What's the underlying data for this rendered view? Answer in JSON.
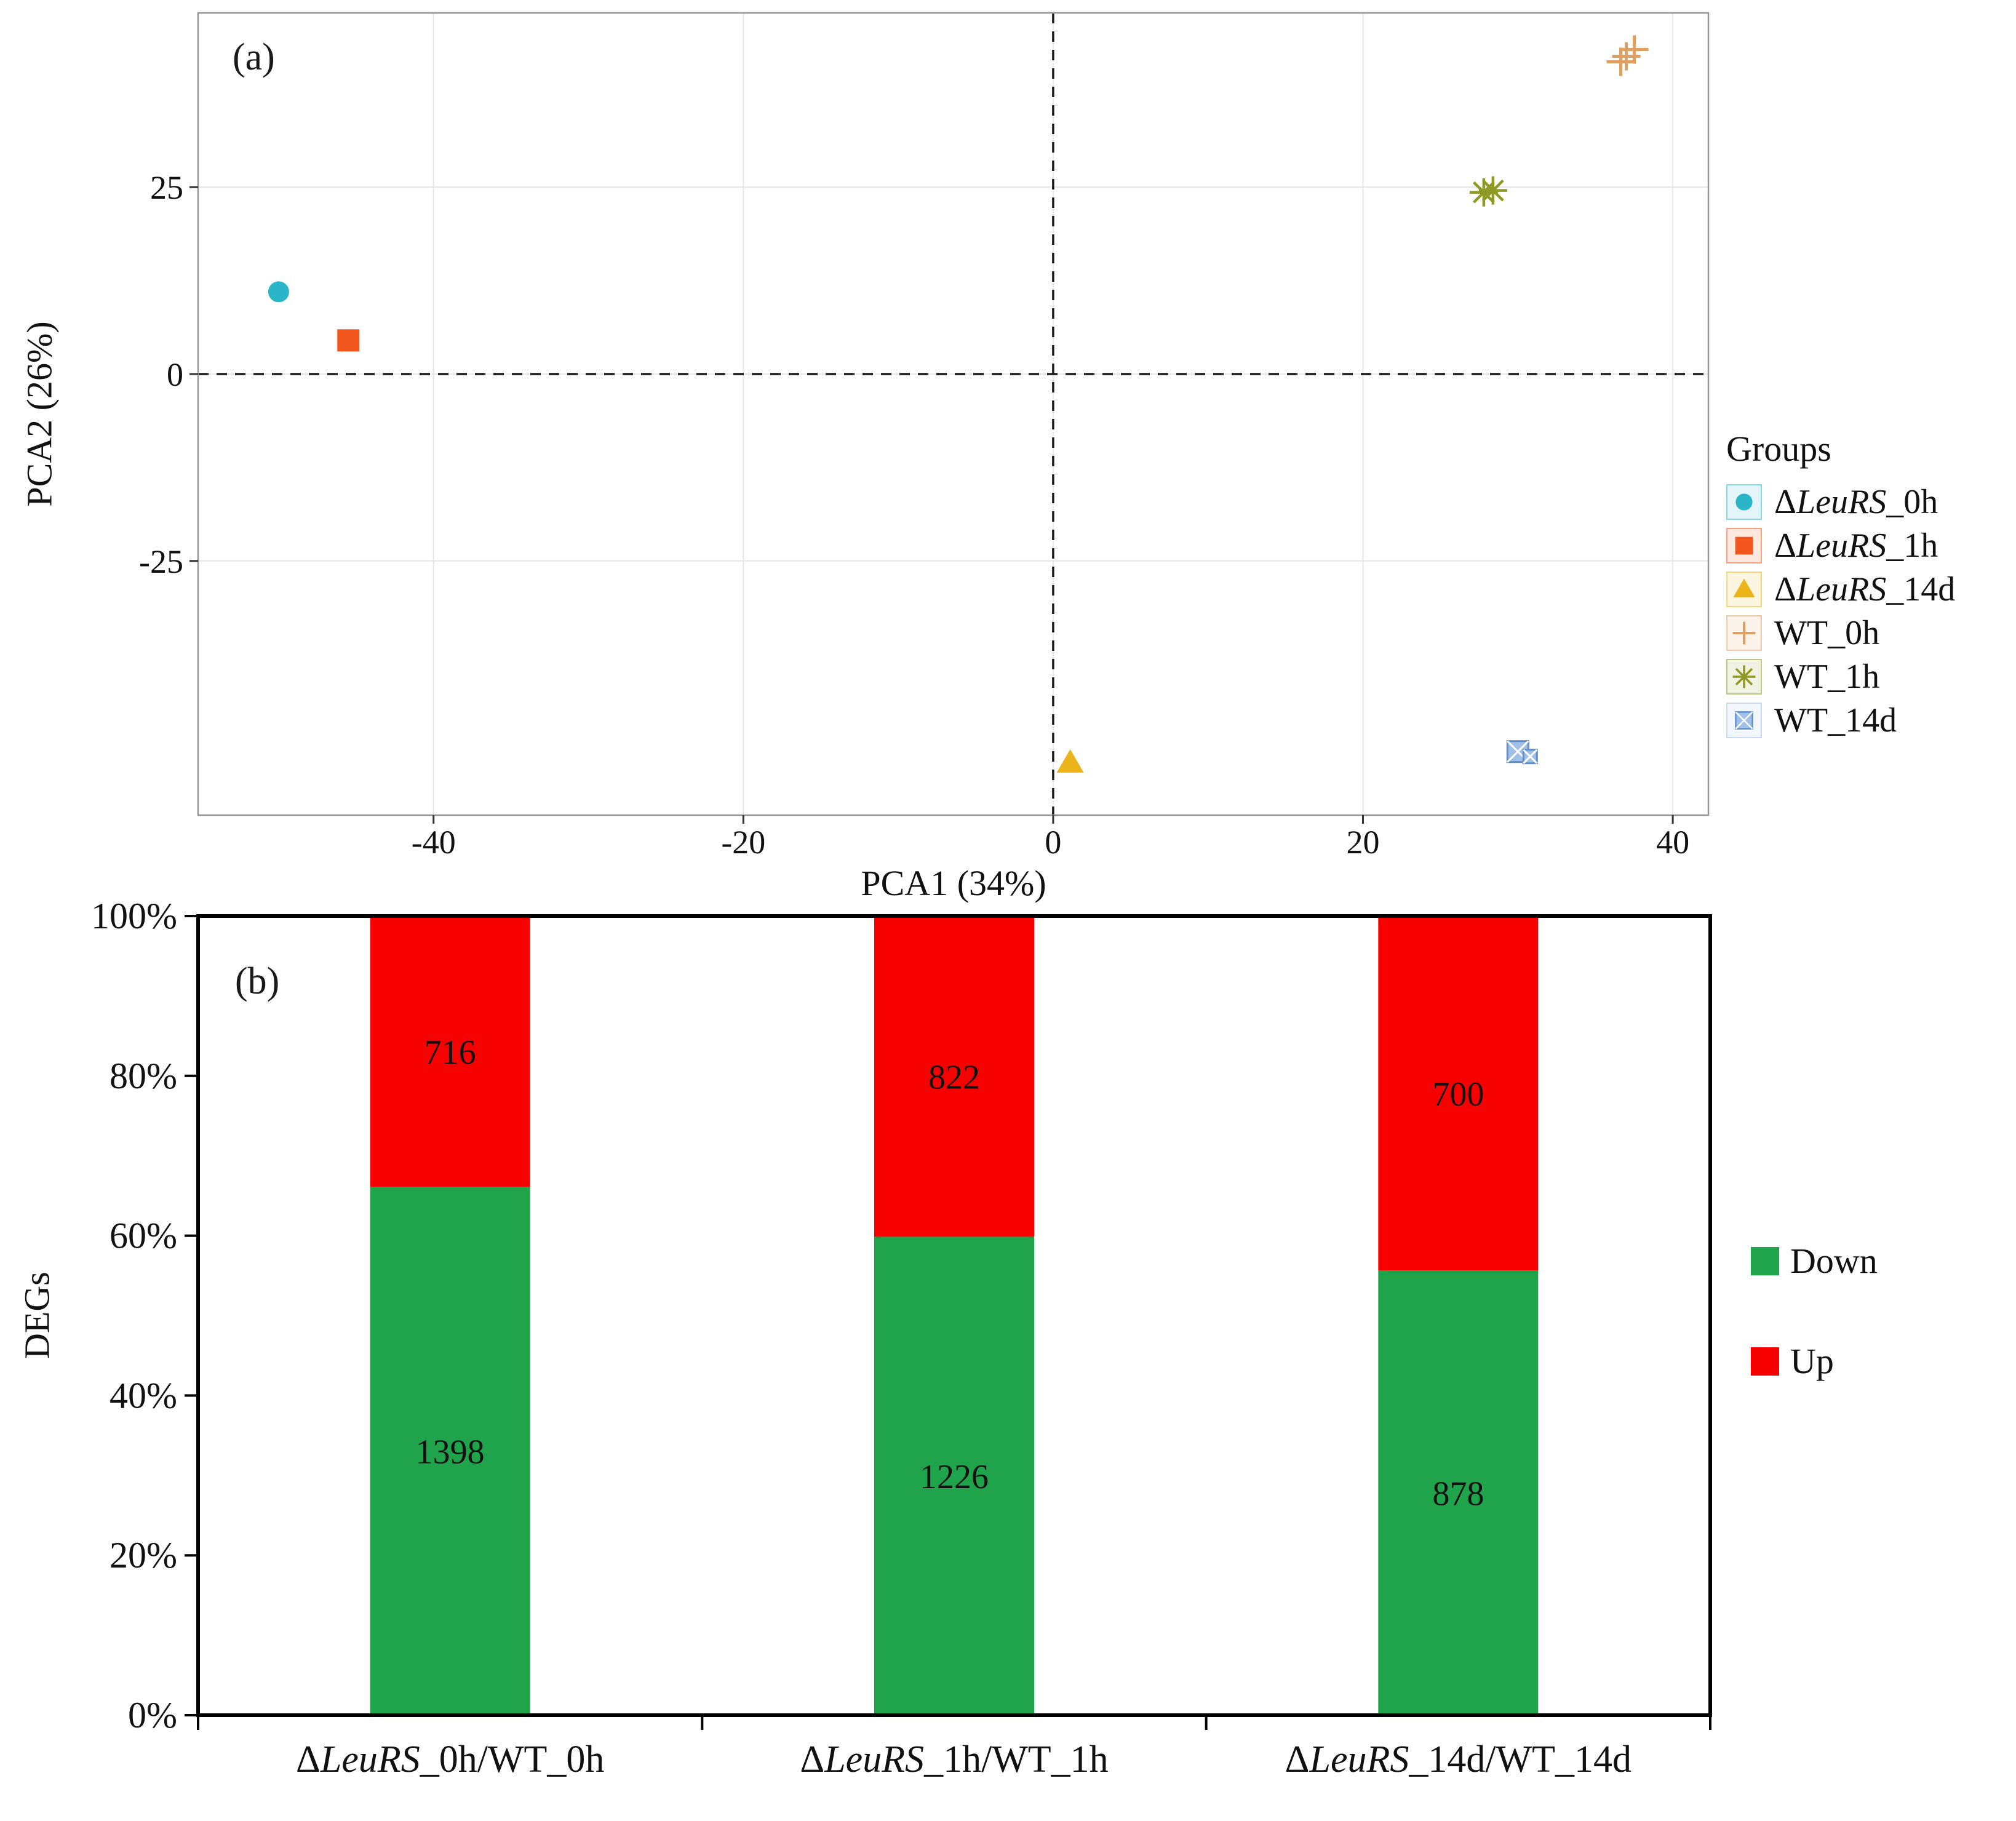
{
  "italic_token": "LeuRS",
  "chart_data": [
    {
      "type": "scatter",
      "panel": "(a)",
      "xlabel": "PCA1 (34%)",
      "ylabel": "PCA2 (26%)",
      "legend_title": "Groups",
      "xlim": [
        -55.2,
        42.3
      ],
      "ylim": [
        -59,
        48.3
      ],
      "xticks": [
        -40,
        -20,
        0,
        20,
        40
      ],
      "yticks": [
        -25,
        0,
        25
      ],
      "grid": true,
      "zero_lines": "dashed",
      "legend_position": "right",
      "series": [
        {
          "name": "ΔLeuRS_0h",
          "marker": "circle",
          "color": "#2ab5c8",
          "points": [
            [
              -50,
              11
            ]
          ]
        },
        {
          "name": "ΔLeuRS_1h",
          "marker": "square",
          "color": "#f4571d",
          "points": [
            [
              -45.5,
              4.5
            ]
          ]
        },
        {
          "name": "ΔLeuRS_14d",
          "marker": "triangle",
          "color": "#ebb51a",
          "points": [
            [
              1.1,
              -52
            ]
          ]
        },
        {
          "name": "WT_0h",
          "marker": "plus",
          "color": "#de9f63",
          "points": [
            [
              37,
              42.5
            ]
          ]
        },
        {
          "name": "WT_1h",
          "marker": "asterisk",
          "color": "#8f9a25",
          "points": [
            [
              27.8,
              24.3
            ]
          ]
        },
        {
          "name": "WT_14d",
          "marker": "square-x",
          "color": "#9fc0e8",
          "stroke": "#5d8fcc",
          "points": [
            [
              30,
              -50.5
            ]
          ]
        }
      ]
    },
    {
      "type": "bar",
      "panel": "(b)",
      "stacked": true,
      "percent_axis": true,
      "ylabel": "DEGs",
      "categories": [
        "ΔLeuRS_0h/WT_0h",
        "ΔLeuRS_1h/WT_1h",
        "ΔLeuRS_14d/WT_14d"
      ],
      "yticks": [
        0,
        20,
        40,
        60,
        80,
        100
      ],
      "value_label_color": "#333333",
      "legend_position": "right",
      "series": [
        {
          "name": "Down",
          "color": "#1fa44c",
          "values": [
            1398,
            1226,
            878
          ]
        },
        {
          "name": "Up",
          "color": "#f70000",
          "values": [
            716,
            822,
            700
          ]
        }
      ]
    }
  ]
}
